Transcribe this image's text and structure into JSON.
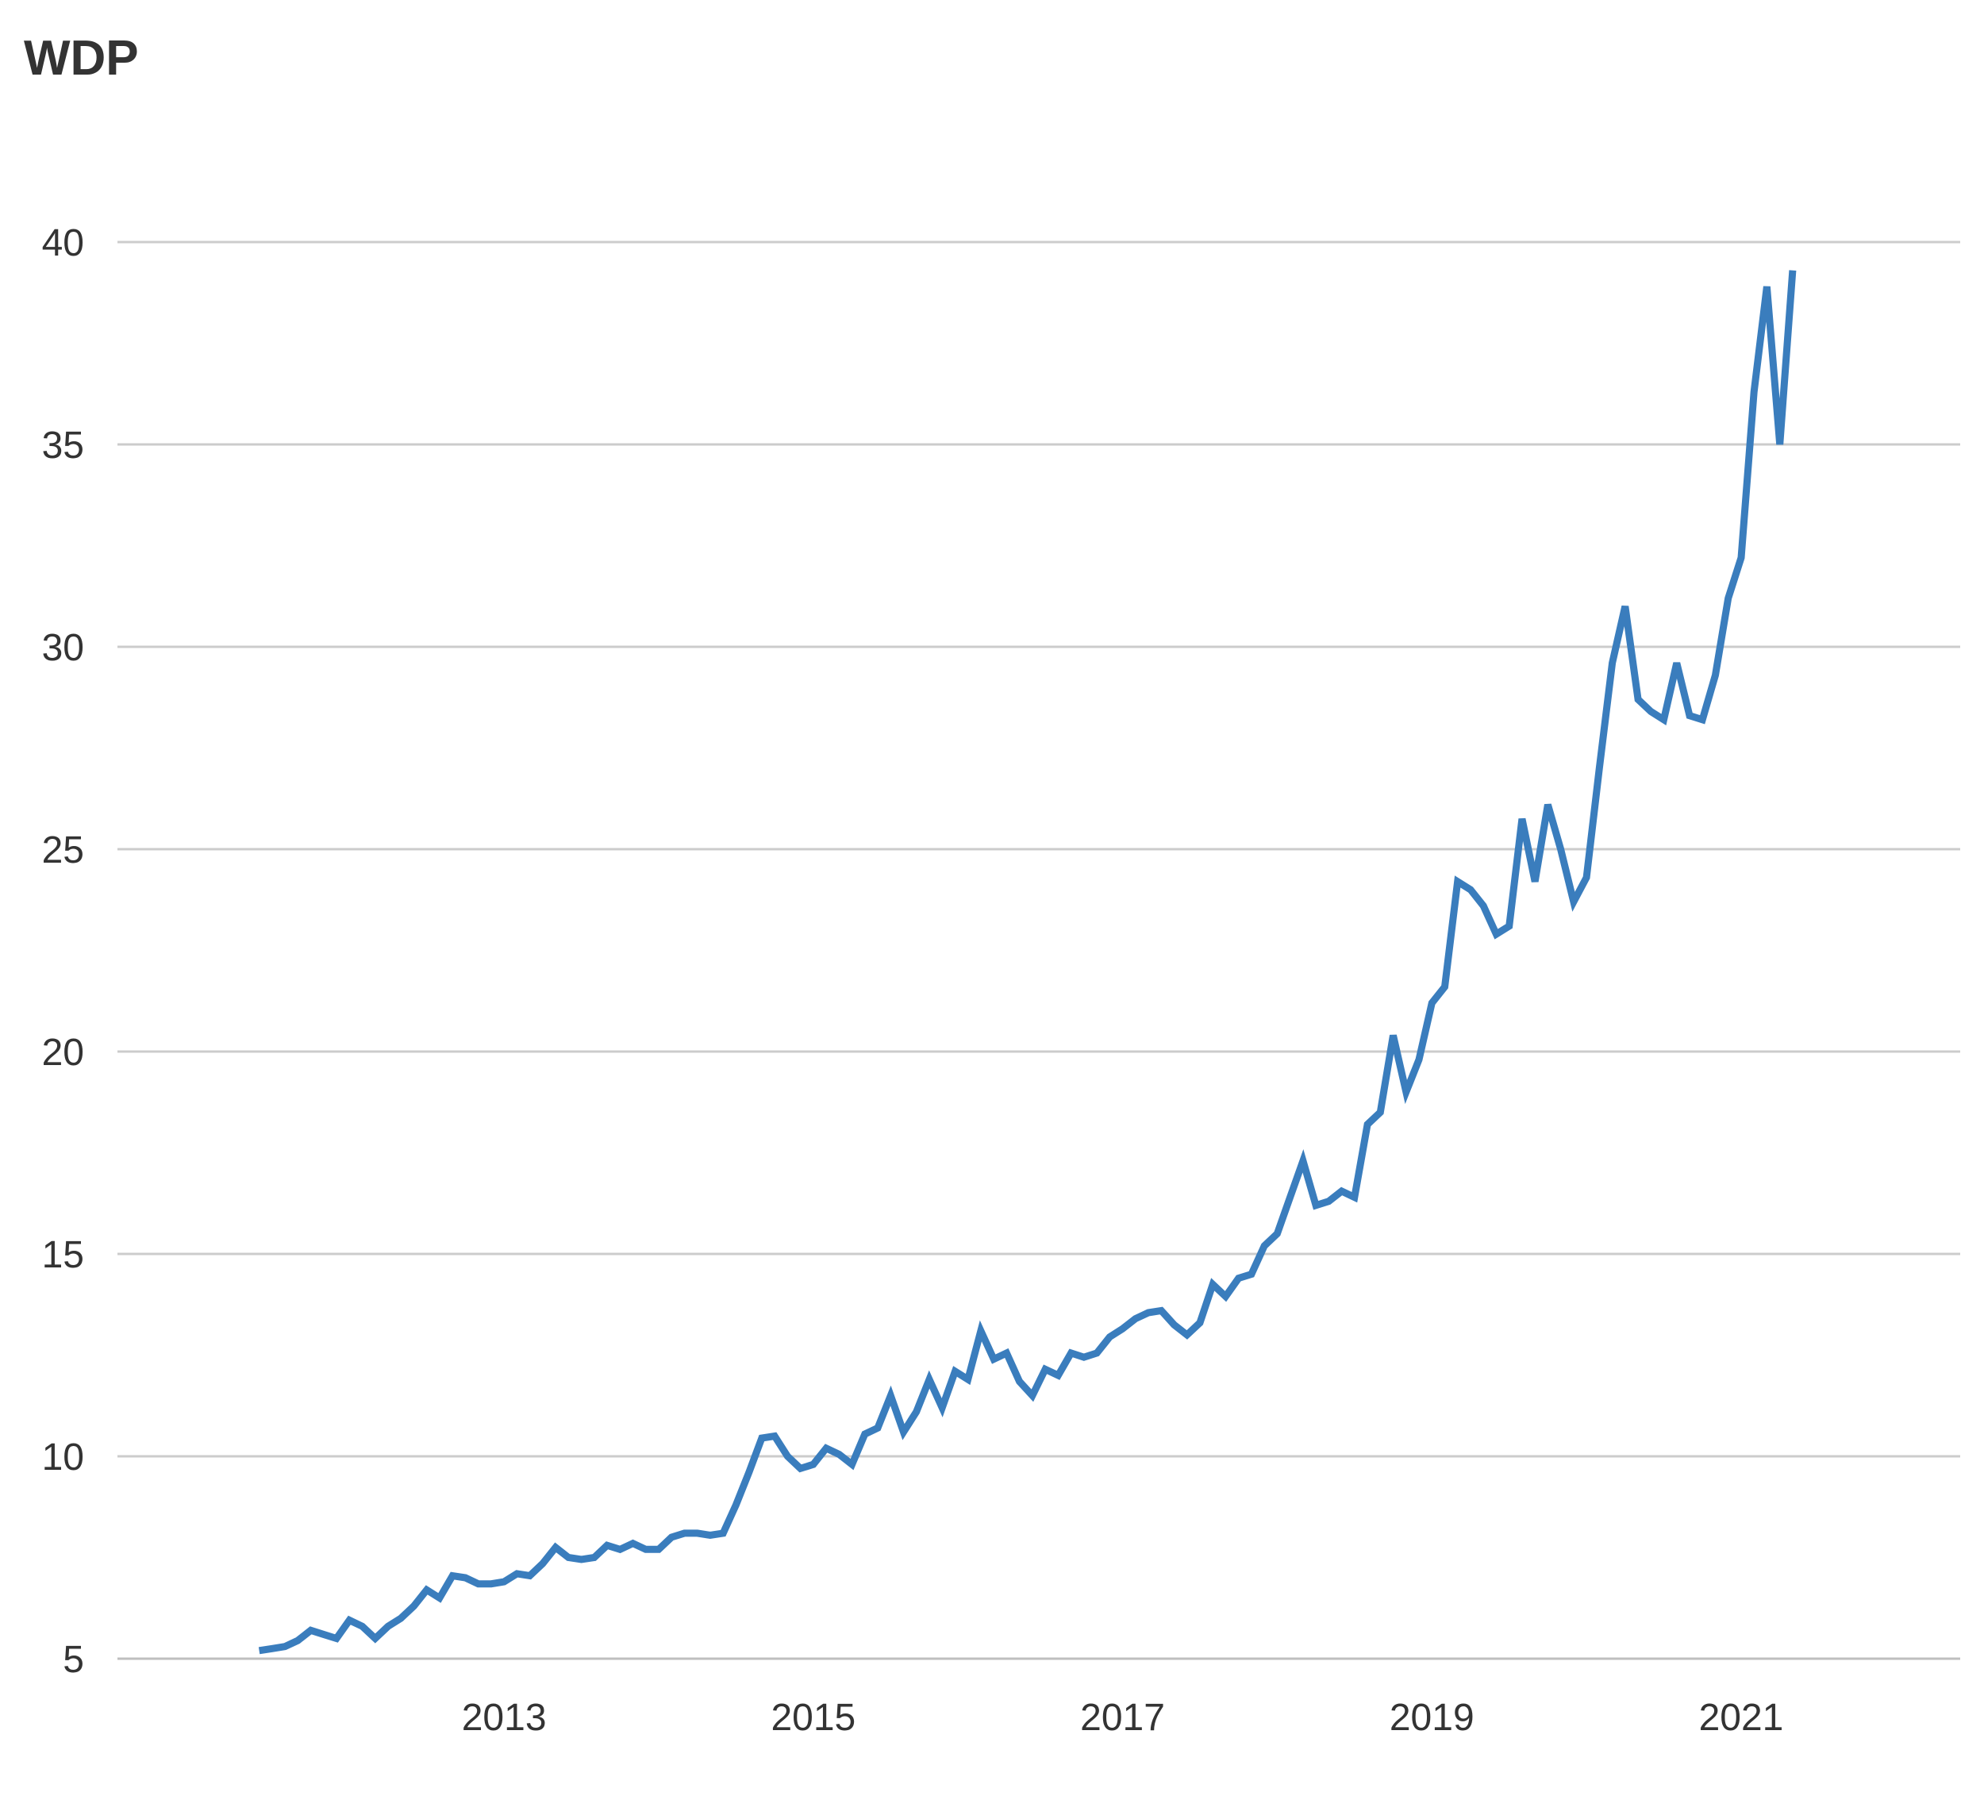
{
  "chart_data": {
    "type": "line",
    "title": "WDP",
    "xlabel": "",
    "ylabel": "",
    "ylim": [
      5,
      40
    ],
    "xlim": [
      "2011-01-01",
      "2022-12-01"
    ],
    "yticks": [
      5,
      10,
      15,
      20,
      25,
      30,
      35,
      40
    ],
    "xticks": [
      "2013",
      "2015",
      "2017",
      "2019",
      "2021"
    ],
    "grid": "horizontal",
    "colors": {
      "line": "#3a7dbd",
      "grid": "#cccccc",
      "axis": "#bfbfbf",
      "text": "#333333"
    },
    "series": [
      {
        "x": [
          "2011-12",
          "2012-01",
          "2012-02",
          "2012-03",
          "2012-04",
          "2012-05",
          "2012-06",
          "2012-07",
          "2012-08",
          "2012-09",
          "2012-10",
          "2012-11",
          "2012-12",
          "2013-01",
          "2013-02",
          "2013-03",
          "2013-04",
          "2013-05",
          "2013-06",
          "2013-07",
          "2013-08",
          "2013-09",
          "2013-10",
          "2013-11",
          "2013-12",
          "2014-01",
          "2014-02",
          "2014-03",
          "2014-04",
          "2014-05",
          "2014-06",
          "2014-07",
          "2014-08",
          "2014-09",
          "2014-10",
          "2014-11",
          "2014-12",
          "2015-01",
          "2015-02",
          "2015-03",
          "2015-04",
          "2015-05",
          "2015-06",
          "2015-07",
          "2015-08",
          "2015-09",
          "2015-10",
          "2015-11",
          "2015-12",
          "2016-01",
          "2016-02",
          "2016-03",
          "2016-04",
          "2016-05",
          "2016-06",
          "2016-07",
          "2016-08",
          "2016-09",
          "2016-10",
          "2016-11",
          "2016-12",
          "2017-01",
          "2017-02",
          "2017-03",
          "2017-04",
          "2017-05",
          "2017-06",
          "2017-07",
          "2017-08",
          "2017-09",
          "2017-10",
          "2017-11",
          "2017-12",
          "2018-01",
          "2018-02",
          "2018-03",
          "2018-04",
          "2018-05",
          "2018-06",
          "2018-07",
          "2018-08",
          "2018-09",
          "2018-10",
          "2018-11",
          "2018-12",
          "2019-01",
          "2019-02",
          "2019-03",
          "2019-04",
          "2019-05",
          "2019-06",
          "2019-07",
          "2019-08",
          "2019-09",
          "2019-10",
          "2019-11",
          "2019-12",
          "2020-01",
          "2020-02",
          "2020-03",
          "2020-04",
          "2020-05",
          "2020-06",
          "2020-07",
          "2020-08",
          "2020-09",
          "2020-10",
          "2020-11",
          "2020-12",
          "2021-01",
          "2021-02",
          "2021-03",
          "2021-04",
          "2021-05",
          "2021-06",
          "2021-07",
          "2021-08",
          "2021-09",
          "2021-10",
          "2021-11"
        ],
        "values": [
          5.2,
          5.25,
          5.3,
          5.45,
          5.7,
          5.6,
          5.5,
          5.95,
          5.8,
          5.5,
          5.8,
          6.0,
          6.3,
          6.7,
          6.5,
          7.05,
          7.0,
          6.85,
          6.85,
          6.9,
          7.1,
          7.05,
          7.35,
          7.75,
          7.5,
          7.45,
          7.5,
          7.8,
          7.7,
          7.85,
          7.7,
          7.7,
          8.0,
          8.1,
          8.1,
          8.05,
          8.1,
          8.8,
          9.6,
          10.45,
          10.5,
          10.0,
          9.7,
          9.8,
          10.2,
          10.05,
          9.8,
          10.55,
          10.7,
          11.5,
          10.6,
          11.1,
          11.9,
          11.2,
          12.1,
          11.9,
          13.1,
          12.4,
          12.55,
          11.85,
          11.5,
          12.15,
          12.0,
          12.55,
          12.45,
          12.55,
          12.95,
          13.15,
          13.4,
          13.55,
          13.6,
          13.25,
          13.0,
          13.3,
          14.25,
          13.95,
          14.4,
          14.5,
          15.2,
          15.5,
          16.4,
          17.3,
          16.2,
          16.3,
          16.55,
          16.4,
          18.2,
          18.5,
          20.4,
          19.0,
          19.8,
          21.2,
          21.6,
          24.2,
          24.0,
          23.6,
          22.9,
          23.1,
          25.75,
          24.2,
          26.1,
          25.0,
          23.7,
          24.3,
          27.0,
          29.6,
          31.0,
          28.7,
          28.4,
          28.2,
          29.6,
          28.3,
          28.2,
          29.3,
          31.2,
          32.2,
          36.3,
          38.9,
          35.0,
          39.3
        ]
      }
    ]
  }
}
